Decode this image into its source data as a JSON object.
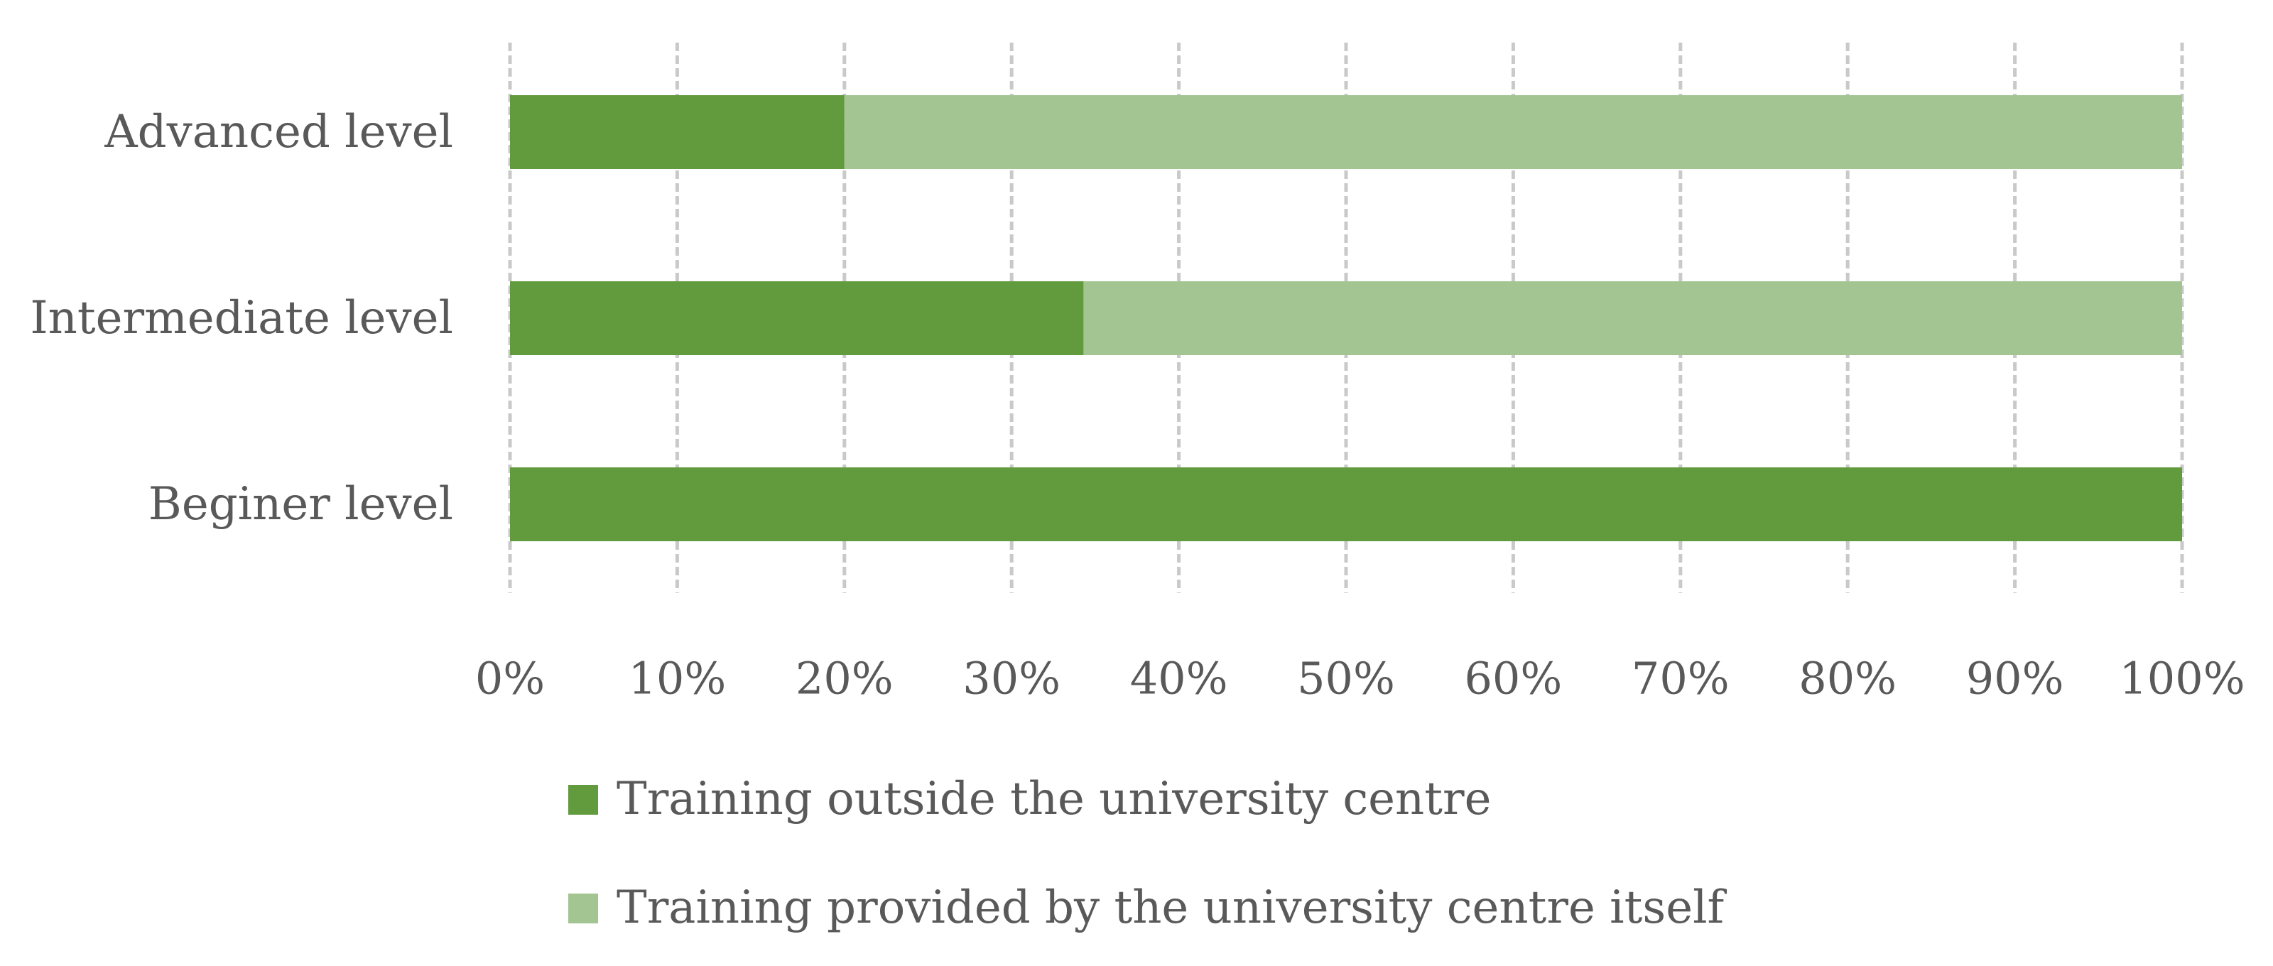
{
  "chart_data": {
    "type": "bar",
    "orientation": "horizontal",
    "stacked": true,
    "categories": [
      "Advanced level",
      "Intermediate level",
      "Beginer level"
    ],
    "series": [
      {
        "name": "Training outside the university centre",
        "values": [
          20,
          34.3,
          100
        ],
        "color": "#629a3e"
      },
      {
        "name": "Training provided by the university centre itself",
        "values": [
          80,
          65.7,
          0
        ],
        "color": "#a3c592"
      }
    ],
    "xlim": [
      0,
      100
    ],
    "xticks": [
      "0%",
      "10%",
      "20%",
      "30%",
      "40%",
      "50%",
      "60%",
      "70%",
      "80%",
      "90%",
      "100%"
    ],
    "title": "",
    "xlabel": "",
    "ylabel": "",
    "grid": "vertical dashed",
    "legend_position": "bottom"
  }
}
